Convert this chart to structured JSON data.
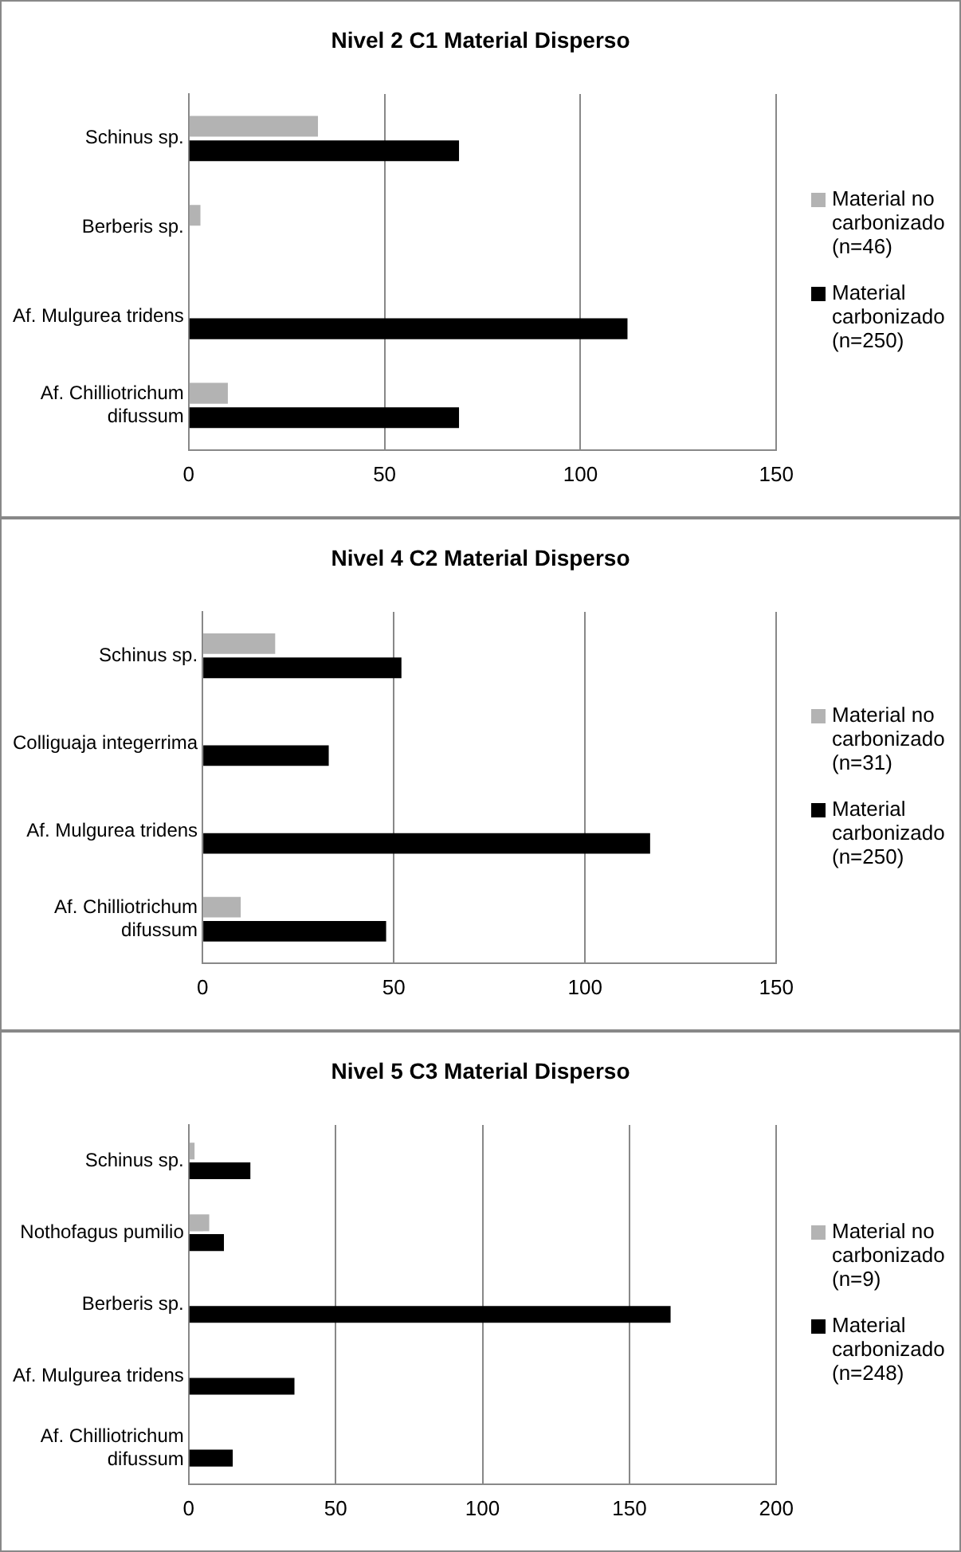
{
  "chart_data": [
    {
      "type": "bar",
      "orientation": "horizontal",
      "title": "Nivel 2 C1 Material Disperso",
      "categories": [
        "Schinus sp.",
        "Berberis sp.",
        "Af. Mulgurea tridens",
        "Af. Chilliotrichum difussum"
      ],
      "series": [
        {
          "name": "Material no carbonizado (n=46)",
          "color": "#b3b3b3",
          "values": [
            33,
            3,
            null,
            10
          ]
        },
        {
          "name": "Material carbonizado (n=250)",
          "color": "#000000",
          "values": [
            69,
            null,
            112,
            69
          ]
        }
      ],
      "xlim": [
        0,
        150
      ],
      "xticks": [
        0,
        50,
        100,
        150
      ],
      "grid": "x",
      "legend": "right"
    },
    {
      "type": "bar",
      "orientation": "horizontal",
      "title": "Nivel 4 C2 Material Disperso",
      "categories": [
        "Schinus sp.",
        "Colliguaja integerrima",
        "Af. Mulgurea tridens",
        "Af. Chilliotrichum difussum"
      ],
      "series": [
        {
          "name": "Material no carbonizado (n=31)",
          "color": "#b3b3b3",
          "values": [
            19,
            null,
            null,
            10
          ]
        },
        {
          "name": "Material carbonizado (n=250)",
          "color": "#000000",
          "values": [
            52,
            33,
            117,
            48
          ]
        }
      ],
      "xlim": [
        0,
        150
      ],
      "xticks": [
        0,
        50,
        100,
        150
      ],
      "grid": "x",
      "legend": "right"
    },
    {
      "type": "bar",
      "orientation": "horizontal",
      "title": "Nivel 5 C3 Material Disperso",
      "categories": [
        "Schinus sp.",
        "Nothofagus pumilio",
        "Berberis sp.",
        "Af. Mulgurea tridens",
        "Af. Chilliotrichum difussum"
      ],
      "series": [
        {
          "name": "Material no carbonizado (n=9)",
          "color": "#b3b3b3",
          "values": [
            2,
            7,
            null,
            null,
            null
          ]
        },
        {
          "name": "Material carbonizado (n=248)",
          "color": "#000000",
          "values": [
            21,
            12,
            164,
            36,
            15
          ]
        }
      ],
      "xlim": [
        0,
        200
      ],
      "xticks": [
        0,
        50,
        100,
        150,
        200
      ],
      "grid": "x",
      "legend": "right"
    }
  ]
}
